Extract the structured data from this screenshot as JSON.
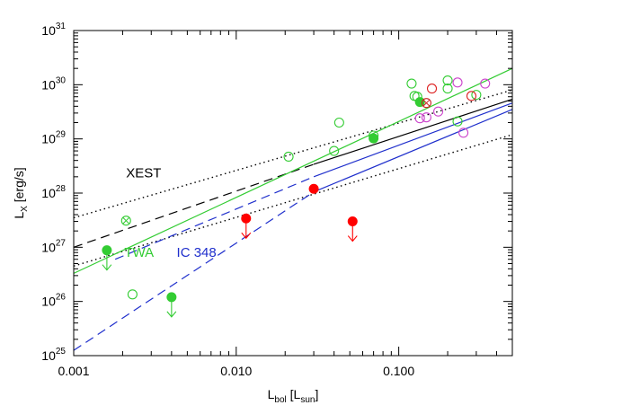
{
  "chart_data": {
    "type": "scatter",
    "x_scale": "log",
    "y_scale": "log",
    "xlim": [
      0.001,
      0.5
    ],
    "ylim": [
      1e+25,
      1e+31
    ],
    "xlabel": {
      "main": "L",
      "sub": "bol",
      "rest": " [L",
      "sub2": "sun",
      "end": "]"
    },
    "ylabel": {
      "main": "L",
      "sub": "X",
      "rest": " [erg/s]"
    },
    "x_ticks": [
      {
        "value": 0.001,
        "label": "0.001"
      },
      {
        "value": 0.01,
        "label": "0.010"
      },
      {
        "value": 0.1,
        "label": "0.100"
      }
    ],
    "y_ticks": [
      {
        "value": 1e+25,
        "base": "10",
        "exp": "25"
      },
      {
        "value": 1e+26,
        "base": "10",
        "exp": "26"
      },
      {
        "value": 1e+27,
        "base": "10",
        "exp": "27"
      },
      {
        "value": 1e+28,
        "base": "10",
        "exp": "28"
      },
      {
        "value": 1e+29,
        "base": "10",
        "exp": "29"
      },
      {
        "value": 1e+30,
        "base": "10",
        "exp": "30"
      },
      {
        "value": 1e+31,
        "base": "10",
        "exp": "31"
      }
    ],
    "annotations": [
      {
        "text": "XEST",
        "x": 0.0021,
        "y": 1.95e+28,
        "color": "#000000"
      },
      {
        "text": "TWA",
        "x": 0.00205,
        "y": 6.6e+26,
        "color": "#33cc33"
      },
      {
        "text": "IC 348",
        "x": 0.0043,
        "y": 6.6e+26,
        "color": "#1f2fcc"
      }
    ],
    "lines": [
      {
        "name": "xest-dotted-upper",
        "style": "dotted",
        "color": "#000000",
        "x": [
          0.001,
          0.5
        ],
        "y": [
          3.5e+27,
          8e+29
        ]
      },
      {
        "name": "xest-dotted-lower",
        "style": "dotted",
        "color": "#000000",
        "x": [
          0.001,
          0.5
        ],
        "y": [
          4.5e+26,
          1.2e+29
        ]
      },
      {
        "name": "xest-fit-dashed",
        "style": "dashed",
        "color": "#000000",
        "x": [
          0.001,
          0.03
        ],
        "y": [
          1e+27,
          3.4e+28
        ]
      },
      {
        "name": "xest-fit-solid",
        "style": "solid",
        "color": "#000000",
        "x": [
          0.03,
          0.5
        ],
        "y": [
          3.4e+28,
          5.4e+29
        ]
      },
      {
        "name": "twa-fit",
        "style": "solid",
        "color": "#33cc33",
        "x": [
          0.001,
          0.5
        ],
        "y": [
          3.3e+26,
          2e+30
        ]
      },
      {
        "name": "ic348-fit-dashed",
        "style": "dashed",
        "color": "#1f2fcc",
        "x": [
          0.0018,
          0.03
        ],
        "y": [
          6e+26,
          2e+28
        ]
      },
      {
        "name": "ic348-fit-solid",
        "style": "solid",
        "color": "#1f2fcc",
        "x": [
          0.03,
          0.5
        ],
        "y": [
          2e+28,
          4.6e+29
        ]
      },
      {
        "name": "ic348-other-dashed",
        "style": "dashed",
        "color": "#1f2fcc",
        "x": [
          0.001,
          0.03
        ],
        "y": [
          1.25e+25,
          1.05e+28
        ]
      },
      {
        "name": "ic348-other-solid",
        "style": "solid",
        "color": "#1f2fcc",
        "x": [
          0.03,
          0.5
        ],
        "y": [
          1.05e+28,
          3.5e+29
        ]
      }
    ],
    "series": [
      {
        "name": "TWA detections (open)",
        "color": "#33cc33",
        "marker": "open-circle",
        "points": [
          [
            0.0023,
            1.35e+26
          ],
          [
            0.021,
            4.7e+28
          ],
          [
            0.04,
            6e+28
          ],
          [
            0.043,
            2e+29
          ],
          [
            0.07,
            1.15e+29
          ],
          [
            0.12,
            1.05e+30
          ],
          [
            0.125,
            6.2e+29
          ],
          [
            0.13,
            6e+29
          ],
          [
            0.2,
            1.2e+30
          ],
          [
            0.2,
            8.5e+29
          ],
          [
            0.23,
            2.1e+29
          ],
          [
            0.3,
            6.5e+29
          ]
        ]
      },
      {
        "name": "TWA (filled)",
        "color": "#33cc33",
        "marker": "filled-circle",
        "points": [
          [
            0.07,
            1.02e+29
          ],
          [
            0.135,
            4.8e+29
          ]
        ]
      },
      {
        "name": "TWA upper limits",
        "color": "#33cc33",
        "marker": "filled-circle-arrow",
        "points": [
          [
            0.0016,
            8.8e+26
          ],
          [
            0.004,
            1.2e+26
          ]
        ]
      },
      {
        "name": "TWA crossed",
        "color": "#33cc33",
        "marker": "crossed-circle",
        "points": [
          [
            0.0021,
            3.1e+27
          ]
        ]
      },
      {
        "name": "red open",
        "color": "#dd2222",
        "marker": "open-circle",
        "points": [
          [
            0.16,
            8.5e+29
          ],
          [
            0.28,
            6.2e+29
          ]
        ]
      },
      {
        "name": "red filled",
        "color": "#ff0000",
        "marker": "filled-circle",
        "points": [
          [
            0.03,
            1.2e+28
          ]
        ]
      },
      {
        "name": "red upper limits",
        "color": "#ff0000",
        "marker": "filled-circle-arrow",
        "points": [
          [
            0.0115,
            3.4e+27
          ],
          [
            0.052,
            3e+27
          ]
        ]
      },
      {
        "name": "red crossed",
        "color": "#cc2222",
        "marker": "crossed-circle",
        "points": [
          [
            0.148,
            4.6e+29
          ]
        ]
      },
      {
        "name": "magenta open",
        "color": "#cc44cc",
        "marker": "open-circle",
        "points": [
          [
            0.135,
            2.4e+29
          ],
          [
            0.148,
            2.5e+29
          ],
          [
            0.175,
            3.2e+29
          ],
          [
            0.23,
            1.1e+30
          ],
          [
            0.25,
            1.3e+29
          ],
          [
            0.34,
            1.05e+30
          ]
        ]
      }
    ]
  }
}
